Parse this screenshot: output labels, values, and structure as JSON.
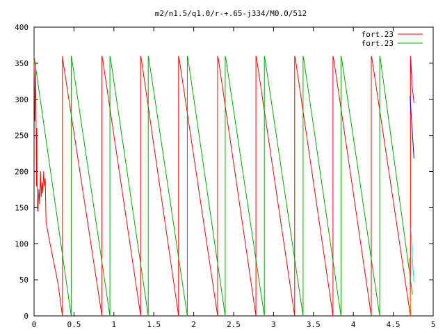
{
  "chart_data": {
    "type": "line",
    "title": "m2/n1.5/q1.0/r-+.65-j334/M0.0/512",
    "xlim": [
      0,
      5
    ],
    "ylim": [
      0,
      400
    ],
    "x_ticks": [
      {
        "value": 0,
        "label": "0"
      },
      {
        "value": 0.5,
        "label": "0.5"
      },
      {
        "value": 1,
        "label": "1"
      },
      {
        "value": 1.5,
        "label": "1.5"
      },
      {
        "value": 2,
        "label": "2"
      },
      {
        "value": 2.5,
        "label": "2.5"
      },
      {
        "value": 3,
        "label": "3"
      },
      {
        "value": 3.5,
        "label": "3.5"
      },
      {
        "value": 4,
        "label": "4"
      },
      {
        "value": 4.5,
        "label": "4.5"
      },
      {
        "value": 5,
        "label": "5"
      }
    ],
    "y_ticks": [
      {
        "value": 0,
        "label": "0"
      },
      {
        "value": 50,
        "label": "50"
      },
      {
        "value": 100,
        "label": "100"
      },
      {
        "value": 150,
        "label": "150"
      },
      {
        "value": 200,
        "label": "200"
      },
      {
        "value": 250,
        "label": "250"
      },
      {
        "value": 300,
        "label": "300"
      },
      {
        "value": 350,
        "label": "350"
      },
      {
        "value": 400,
        "label": "400"
      }
    ],
    "grid": false,
    "legend_position": "top-right",
    "series": [
      {
        "name": "fort.23",
        "color": "#ff0000",
        "x": [
          0.0,
          0.01,
          0.02,
          0.03,
          0.035,
          0.04,
          0.05,
          0.06,
          0.07,
          0.08,
          0.09,
          0.1,
          0.11,
          0.12,
          0.13,
          0.14,
          0.15,
          0.2,
          0.3,
          0.355,
          0.355,
          0.36,
          0.85,
          0.85,
          0.86,
          1.335,
          1.335,
          1.345,
          1.81,
          1.81,
          1.82,
          2.3,
          2.3,
          2.31,
          2.78,
          2.78,
          2.79,
          3.265,
          3.265,
          3.275,
          3.745,
          3.745,
          3.755,
          4.225,
          4.225,
          4.235,
          4.715,
          4.715,
          4.72,
          4.735
        ],
        "y": [
          355,
          270,
          350,
          180,
          260,
          150,
          145,
          175,
          155,
          200,
          165,
          185,
          170,
          200,
          180,
          190,
          130,
          100,
          45,
          0,
          360,
          355,
          0,
          360,
          355,
          0,
          360,
          355,
          0,
          360,
          355,
          0,
          360,
          355,
          0,
          360,
          355,
          0,
          360,
          355,
          0,
          360,
          355,
          0,
          360,
          355,
          0,
          360,
          340,
          330
        ]
      },
      {
        "name": "fort.23",
        "color": "#00aa00",
        "x": [
          0.0,
          0.465,
          0.465,
          0.475,
          0.95,
          0.95,
          0.96,
          1.43,
          1.43,
          1.44,
          1.92,
          1.92,
          1.93,
          2.395,
          2.395,
          2.405,
          2.885,
          2.885,
          2.895,
          3.37,
          3.37,
          3.38,
          3.845,
          3.845,
          3.855,
          4.33,
          4.33,
          4.34,
          4.74
        ],
        "y": [
          360,
          0,
          360,
          355,
          0,
          360,
          355,
          0,
          360,
          355,
          0,
          360,
          355,
          0,
          360,
          355,
          0,
          360,
          355,
          0,
          360,
          355,
          0,
          360,
          355,
          0,
          360,
          355,
          30
        ]
      },
      {
        "color": "#0000ff",
        "x": [
          4.71,
          4.73,
          4.76
        ],
        "y": [
          305,
          270,
          218
        ]
      },
      {
        "color": "#aa00aa",
        "x": [
          4.72,
          4.735,
          4.76
        ],
        "y": [
          355,
          320,
          295
        ]
      },
      {
        "color": "#00dddd",
        "x": [
          4.72,
          4.745,
          4.76
        ],
        "y": [
          120,
          70,
          47
        ]
      },
      {
        "color": "#dd9900",
        "x": [
          4.7,
          4.72
        ],
        "y": [
          80,
          0
        ]
      }
    ]
  }
}
